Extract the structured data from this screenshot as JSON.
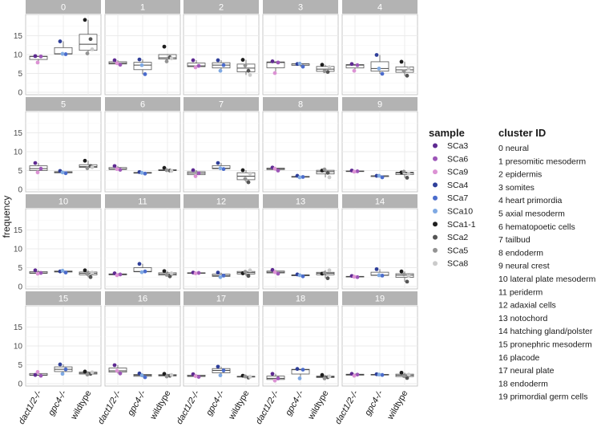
{
  "chart_data": {
    "type": "boxplot",
    "ylabel": "frequency",
    "xlabel": "",
    "ylim": [
      0,
      20
    ],
    "yticks": [
      0,
      5,
      10,
      15
    ],
    "groups": [
      "dact1/2-/-",
      "gpc4-/-",
      "wildtype"
    ],
    "facets": [
      "0",
      "1",
      "2",
      "3",
      "4",
      "5",
      "6",
      "7",
      "8",
      "9",
      "10",
      "11",
      "12",
      "13",
      "14",
      "15",
      "16",
      "17",
      "18",
      "19"
    ],
    "legend_title": "sample",
    "samples": [
      {
        "name": "SCa3",
        "color": "#5e2a91"
      },
      {
        "name": "SCa6",
        "color": "#9d56b8"
      },
      {
        "name": "SCa9",
        "color": "#dc92d4"
      },
      {
        "name": "SCa4",
        "color": "#2f3f9a"
      },
      {
        "name": "SCa7",
        "color": "#4b6ccc"
      },
      {
        "name": "SCa10",
        "color": "#7fa9e3"
      },
      {
        "name": "SCa1-1",
        "color": "#1e1e1e"
      },
      {
        "name": "SCa2",
        "color": "#555555"
      },
      {
        "name": "SCa5",
        "color": "#939393"
      },
      {
        "name": "SCa8",
        "color": "#cbcbcb"
      }
    ],
    "cluster_legend_title": "cluster ID",
    "clusters": [
      "0 neural",
      "1 presomitic mesoderm",
      "2 epidermis",
      "3 somites",
      "4 heart primordia",
      "5 axial mesoderm",
      "6 hematopoetic cells",
      "7 tailbud",
      "8 endoderm",
      "9 neural crest",
      "10 lateral plate mesoderm",
      "11 periderm",
      "12 adaxial cells",
      "13 notochord",
      "14 hatching gland/polster",
      "15 pronephric mesoderm",
      "16 placode",
      "17 neural plate",
      "18 endoderm",
      "19 primordial germ cells"
    ],
    "data": {
      "0": [
        [
          9.6,
          9.5,
          7.9
        ],
        [
          13.5,
          10.1,
          10.2
        ],
        [
          19.2,
          14.1,
          10.3,
          11.4
        ]
      ],
      "1": [
        [
          8.5,
          7.3,
          7.7
        ],
        [
          8.7,
          4.8,
          7.2
        ],
        [
          12.1,
          9.3,
          8.2,
          9.0
        ]
      ],
      "2": [
        [
          8.5,
          7.0,
          6.6
        ],
        [
          8.5,
          7.2,
          5.7
        ],
        [
          8.6,
          5.7,
          7.1,
          4.6
        ]
      ],
      "3": [
        [
          8.2,
          7.9,
          5.1
        ],
        [
          7.5,
          6.8,
          7.6
        ],
        [
          7.3,
          5.4,
          5.6,
          6.7
        ]
      ],
      "4": [
        [
          7.5,
          7.2,
          5.7
        ],
        [
          9.9,
          4.9,
          6.3
        ],
        [
          8.1,
          4.4,
          5.6,
          6.3
        ]
      ],
      "5": [
        [
          7.0,
          5.5,
          4.5
        ],
        [
          4.9,
          4.3,
          4.5
        ],
        [
          7.6,
          6.2,
          5.6,
          5.9
        ]
      ],
      "6": [
        [
          6.2,
          5.2,
          5.4
        ],
        [
          4.6,
          4.2,
          4.4
        ],
        [
          5.7,
          5.0,
          5.1,
          4.9
        ]
      ],
      "7": [
        [
          5.1,
          4.3,
          3.5
        ],
        [
          7.0,
          5.4,
          5.6
        ],
        [
          5.1,
          1.9,
          2.8,
          4.2
        ]
      ],
      "8": [
        [
          5.8,
          5.0,
          5.5
        ],
        [
          3.6,
          3.3,
          3.2
        ],
        [
          5.0,
          4.4,
          5.3,
          3.2
        ]
      ],
      "9": [
        [
          5.0,
          4.8,
          4.7
        ],
        [
          3.6,
          3.2,
          3.6
        ],
        [
          4.5,
          3.1,
          4.7,
          4.2
        ]
      ],
      "10": [
        [
          4.3,
          3.6,
          3.4
        ],
        [
          4.0,
          3.7,
          4.2
        ],
        [
          4.3,
          2.5,
          3.3,
          3.7
        ]
      ],
      "11": [
        [
          3.5,
          3.2,
          3.0
        ],
        [
          6.0,
          4.0,
          3.8
        ],
        [
          4.1,
          2.7,
          3.1,
          3.5
        ]
      ],
      "12": [
        [
          3.7,
          3.6,
          3.5
        ],
        [
          3.7,
          2.9,
          2.5
        ],
        [
          3.5,
          2.8,
          3.9,
          4.3
        ]
      ],
      "13": [
        [
          4.4,
          3.4,
          3.8
        ],
        [
          3.2,
          2.7,
          3.0
        ],
        [
          3.4,
          2.2,
          3.6,
          4.3
        ]
      ],
      "14": [
        [
          2.8,
          2.5,
          2.6
        ],
        [
          4.6,
          2.9,
          3.0
        ],
        [
          4.0,
          1.3,
          3.2,
          2.8
        ]
      ],
      "15": [
        [
          2.3,
          2.1,
          3.1
        ],
        [
          5.1,
          3.8,
          2.6
        ],
        [
          3.2,
          2.6,
          2.4,
          3.0
        ]
      ],
      "16": [
        [
          4.9,
          2.7,
          3.4
        ],
        [
          2.7,
          1.7,
          2.2
        ],
        [
          2.6,
          2.1,
          1.9,
          2.3
        ]
      ],
      "17": [
        [
          2.5,
          1.8,
          2.0
        ],
        [
          4.5,
          3.5,
          2.2
        ],
        [
          2.1,
          1.6,
          1.9,
          1.8
        ]
      ],
      "18": [
        [
          2.6,
          1.4,
          0.8
        ],
        [
          3.9,
          3.7,
          1.4
        ],
        [
          2.3,
          1.7,
          1.4,
          1.9
        ]
      ],
      "19": [
        [
          2.6,
          2.4,
          2.1
        ],
        [
          2.5,
          2.3,
          2.4
        ],
        [
          2.9,
          1.5,
          2.0,
          2.4
        ]
      ]
    }
  }
}
